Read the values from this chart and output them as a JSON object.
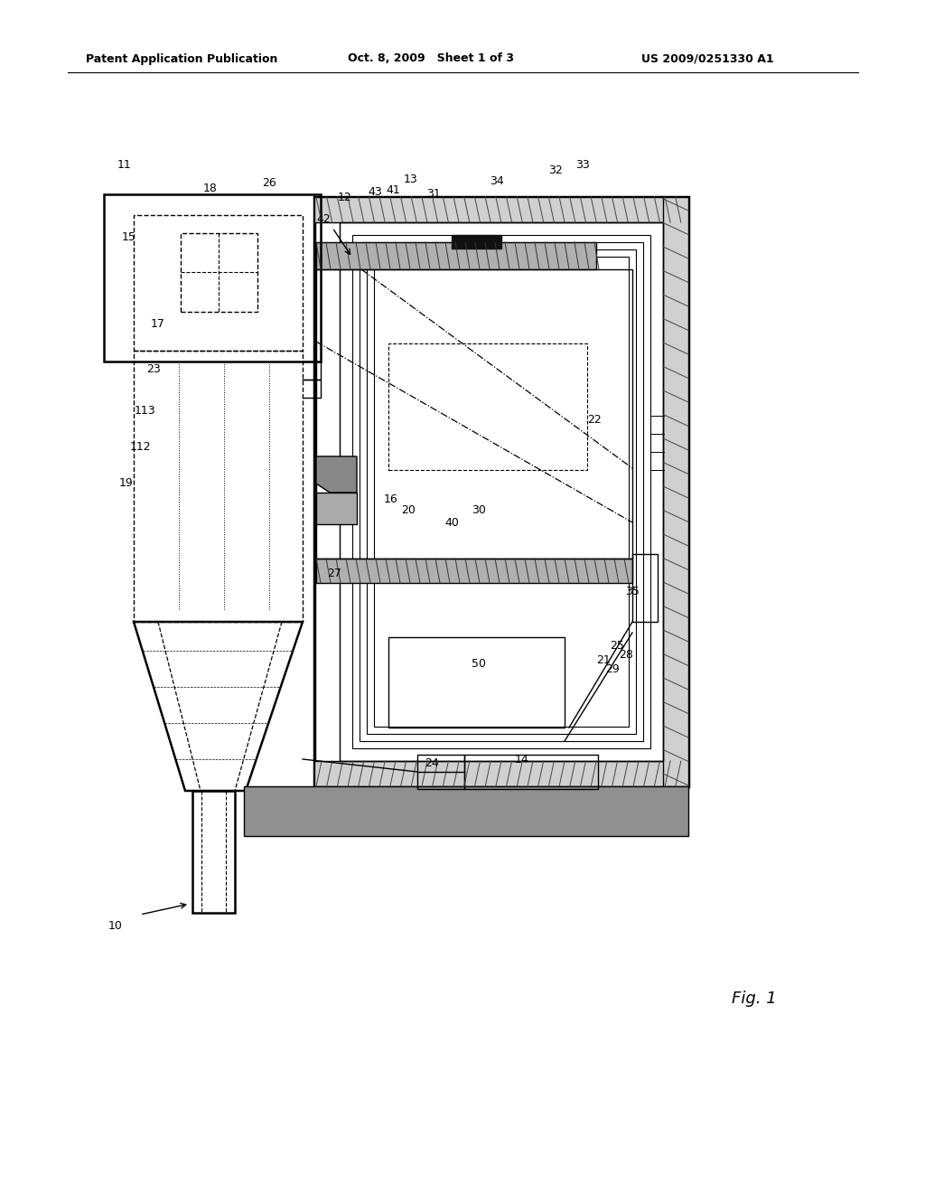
{
  "bg_color": "#ffffff",
  "header_left": "Patent Application Publication",
  "header_mid": "Oct. 8, 2009   Sheet 1 of 3",
  "header_right": "US 2009/0251330 A1",
  "fig_label": "Fig. 1",
  "color_main": "#000000",
  "lw_main": 1.8,
  "lw_thin": 1.0,
  "lw_thick": 2.5
}
